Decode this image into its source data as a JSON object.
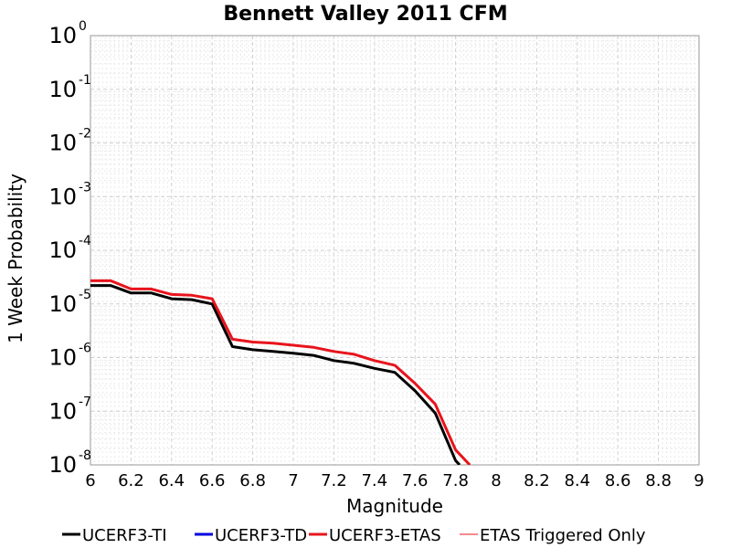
{
  "chart_data": {
    "type": "line",
    "title": "Bennett Valley 2011 CFM",
    "xlabel": "Magnitude",
    "ylabel": "1 Week Probability",
    "xlim": [
      6,
      9
    ],
    "ylim": [
      1e-08,
      1
    ],
    "yscale": "log",
    "grid": true,
    "legend_position": "bottom",
    "x_ticks": [
      "6",
      "6.2",
      "6.4",
      "6.6",
      "6.8",
      "7",
      "7.2",
      "7.4",
      "7.6",
      "7.8",
      "8",
      "8.2",
      "8.4",
      "8.6",
      "8.8",
      "9"
    ],
    "y_ticks": [
      {
        "base": "10",
        "exp": "0"
      },
      {
        "base": "10",
        "exp": "-1"
      },
      {
        "base": "10",
        "exp": "-2"
      },
      {
        "base": "10",
        "exp": "-3"
      },
      {
        "base": "10",
        "exp": "-4"
      },
      {
        "base": "10",
        "exp": "-5"
      },
      {
        "base": "10",
        "exp": "-6"
      },
      {
        "base": "10",
        "exp": "-7"
      },
      {
        "base": "10",
        "exp": "-8"
      }
    ],
    "series": [
      {
        "name": "UCERF3-TI",
        "color": "#000000",
        "line_width": 3,
        "x": [
          6.0,
          6.1,
          6.2,
          6.3,
          6.4,
          6.5,
          6.6,
          6.7,
          6.8,
          6.9,
          7.0,
          7.1,
          7.2,
          7.3,
          7.4,
          7.5,
          7.6,
          7.7,
          7.8,
          7.82
        ],
        "y": [
          2.2e-05,
          2.2e-05,
          1.6e-05,
          1.6e-05,
          1.25e-05,
          1.2e-05,
          1e-05,
          1.6e-06,
          1.4e-06,
          1.3e-06,
          1.2e-06,
          1.1e-06,
          8.8e-07,
          7.8e-07,
          6.3e-07,
          5.3e-07,
          2.4e-07,
          9.2e-08,
          1.2e-08,
          1e-08
        ]
      },
      {
        "name": "UCERF3-TD",
        "color": "#0000dd",
        "line_width": 3,
        "x": [],
        "y": []
      },
      {
        "name": "UCERF3-ETAS",
        "color": "#e8141c",
        "line_width": 3,
        "x": [
          6.0,
          6.1,
          6.2,
          6.3,
          6.4,
          6.5,
          6.6,
          6.7,
          6.8,
          6.9,
          7.0,
          7.1,
          7.2,
          7.3,
          7.4,
          7.5,
          7.6,
          7.7,
          7.8,
          7.87
        ],
        "y": [
          2.7e-05,
          2.7e-05,
          1.9e-05,
          1.9e-05,
          1.5e-05,
          1.45e-05,
          1.25e-05,
          2.2e-06,
          1.95e-06,
          1.85e-06,
          1.7e-06,
          1.55e-06,
          1.3e-06,
          1.15e-06,
          8.8e-07,
          7.2e-07,
          3.3e-07,
          1.35e-07,
          1.9e-08,
          1e-08
        ]
      },
      {
        "name": "ETAS Triggered Only",
        "color": "#e8141c",
        "line_width": 1,
        "x": [],
        "y": []
      }
    ]
  }
}
